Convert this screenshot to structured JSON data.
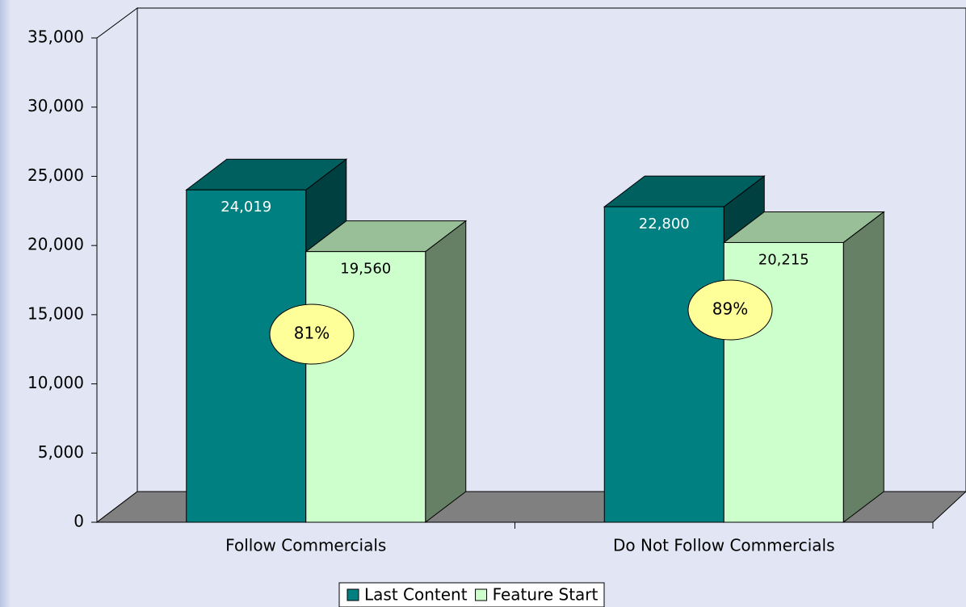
{
  "chart_data": {
    "type": "bar3d",
    "categories": [
      "Follow Commercials",
      "Do Not Follow Commercials"
    ],
    "series": [
      {
        "name": "Last Content",
        "color": "#008080",
        "values": [
          24019,
          22800
        ],
        "value_labels": [
          "24,019",
          "22,800"
        ]
      },
      {
        "name": "Feature Start",
        "color": "#ccffcc",
        "values": [
          19560,
          20215
        ],
        "value_labels": [
          "19,560",
          "20,215"
        ]
      }
    ],
    "annotations": [
      "81%",
      "89%"
    ],
    "ylim": [
      0,
      35000
    ],
    "yticks": [
      0,
      {
        "value": 5000,
        "label": "5,000"
      },
      {
        "value": 10000,
        "label": "10,000"
      },
      {
        "value": 15000,
        "label": "15,000"
      },
      {
        "value": 20000,
        "label": "20,000"
      },
      {
        "value": 25000,
        "label": "25,000"
      },
      {
        "value": 30000,
        "label": "30,000"
      },
      {
        "value": 35000,
        "label": "35,000"
      }
    ],
    "legend": "bottom"
  }
}
